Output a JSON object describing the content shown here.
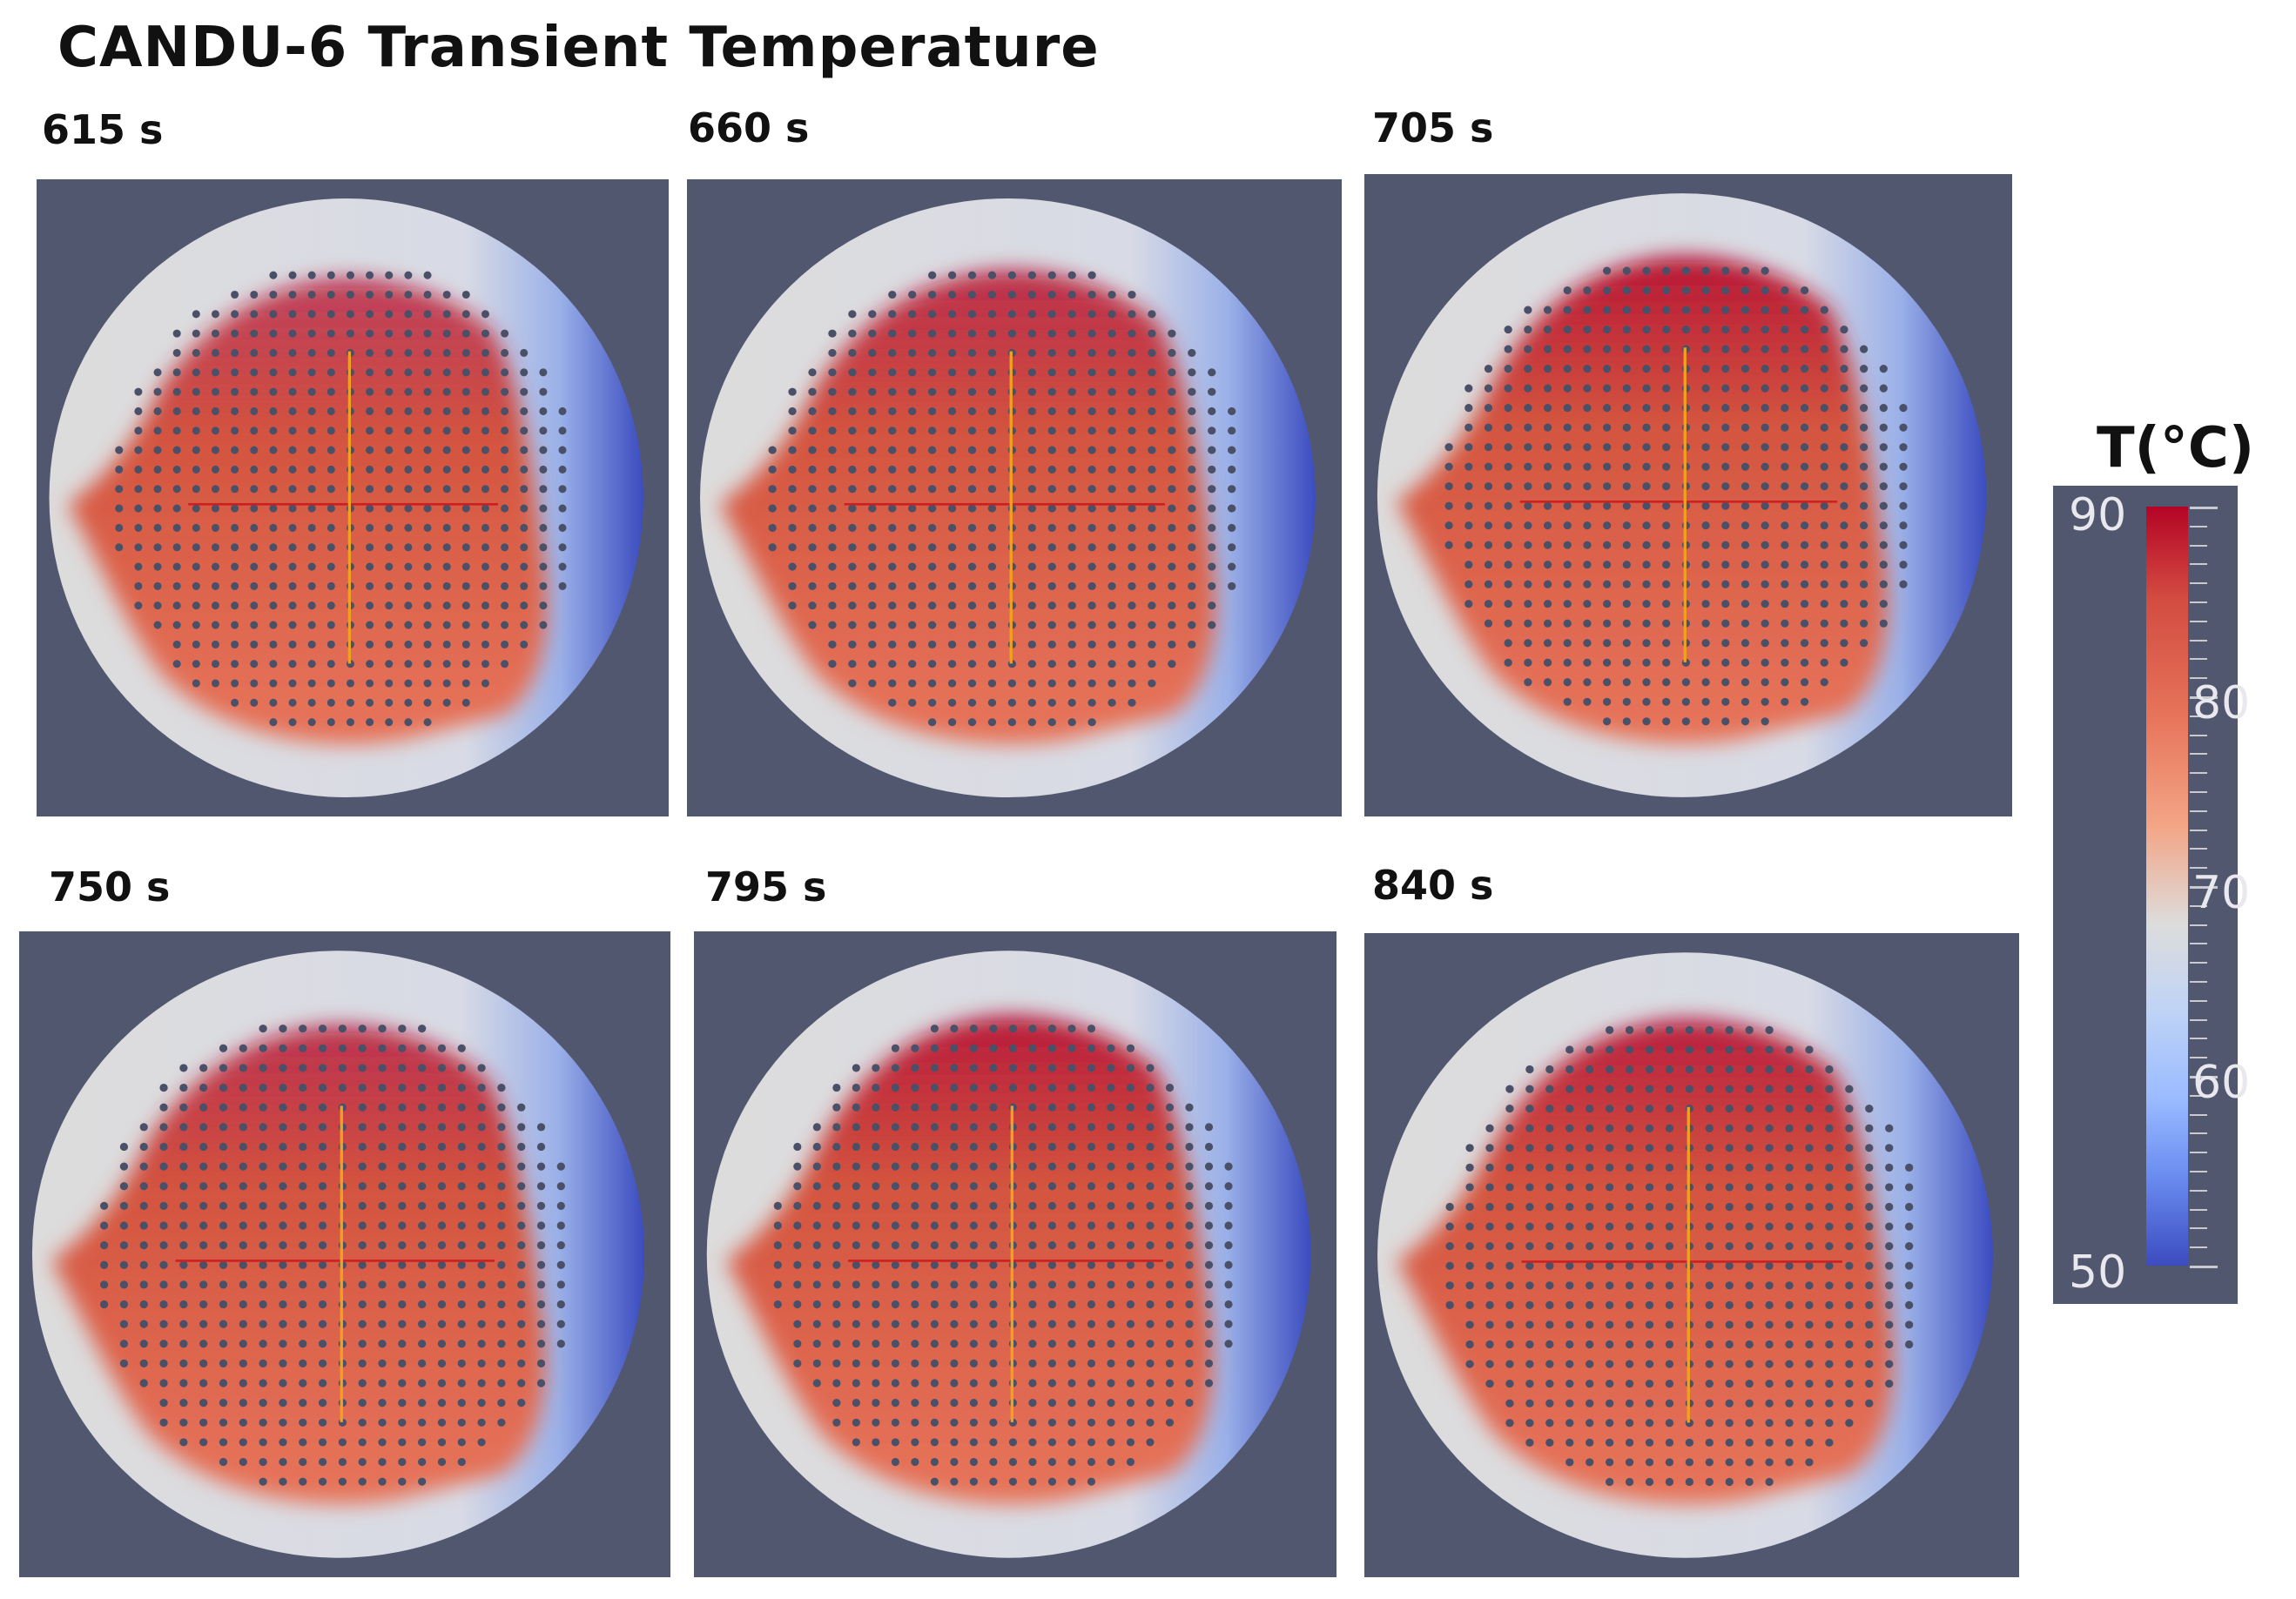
{
  "title": "CANDU-6 Transient Temperature",
  "panels": [
    {
      "time": "615 s",
      "hot_level": 0.35
    },
    {
      "time": "660 s",
      "hot_level": 0.55
    },
    {
      "time": "705 s",
      "hot_level": 0.8
    },
    {
      "time": "750 s",
      "hot_level": 0.5
    },
    {
      "time": "795 s",
      "hot_level": 0.75
    },
    {
      "time": "840 s",
      "hot_level": 0.7
    }
  ],
  "legend": {
    "title": "T(°C)",
    "labels": [
      "90",
      "80",
      "70",
      "60",
      "50"
    ],
    "min": 50,
    "max": 90
  },
  "colors": {
    "background": "#525770",
    "cold": "#3b4cc0",
    "neutral": "#dddcdc",
    "warm": "#e7755b",
    "hot": "#b40426",
    "tube": "#4a5068",
    "vertical_line": "#f0a020",
    "horizontal_line": "#cc2020"
  }
}
